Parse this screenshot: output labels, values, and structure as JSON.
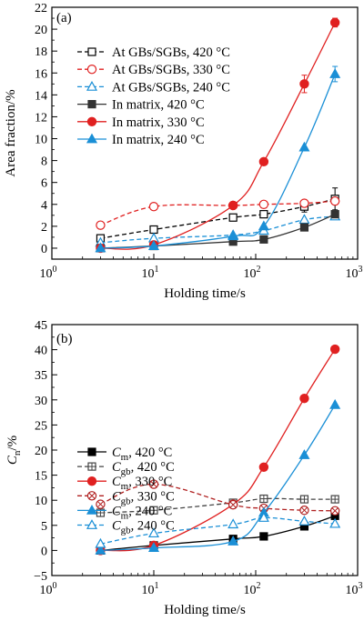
{
  "chart_data": [
    {
      "type": "scatter",
      "panel_label": "(a)",
      "xlabel": "Holding time/s",
      "ylabel": "Area fraction/%",
      "xscale": "log",
      "xlim": [
        1,
        1000
      ],
      "ylim": [
        -1,
        22
      ],
      "xticks": [
        {
          "value": 1,
          "base": "10",
          "exp": "0"
        },
        {
          "value": 10,
          "base": "10",
          "exp": "1"
        },
        {
          "value": 100,
          "base": "10",
          "exp": "2"
        },
        {
          "value": 1000,
          "base": "10",
          "exp": "3"
        }
      ],
      "yticks": [
        0,
        2,
        4,
        6,
        8,
        10,
        12,
        14,
        16,
        18,
        20,
        22
      ],
      "legend_position": "upper-left",
      "series": [
        {
          "name": "At GBs/SGBs, 420 °C",
          "color": "#000000",
          "marker": "square",
          "filled": false,
          "dashed": true,
          "points": [
            [
              3,
              0.9
            ],
            [
              10,
              1.7
            ],
            [
              60,
              2.8
            ],
            [
              120,
              3.1
            ],
            [
              300,
              3.8
            ],
            [
              600,
              4.5
            ]
          ],
          "err": [
            0.1,
            0.1,
            0.2,
            0.2,
            0.5,
            1.0
          ]
        },
        {
          "name": "At GBs/SGBs, 330 °C",
          "color": "#e02020",
          "marker": "circle",
          "filled": false,
          "dashed": true,
          "points": [
            [
              3,
              2.1
            ],
            [
              10,
              3.8
            ],
            [
              60,
              3.9
            ],
            [
              120,
              4.0
            ],
            [
              300,
              4.1
            ],
            [
              600,
              4.3
            ]
          ],
          "err": [
            0,
            0,
            0,
            0,
            0,
            0
          ]
        },
        {
          "name": "At GBs/SGBs, 240 °C",
          "color": "#1a8fd6",
          "marker": "triangle",
          "filled": false,
          "dashed": true,
          "points": [
            [
              3,
              0.5
            ],
            [
              10,
              0.9
            ],
            [
              60,
              1.2
            ],
            [
              120,
              1.6
            ],
            [
              300,
              2.6
            ],
            [
              600,
              2.9
            ]
          ],
          "err": [
            0,
            0,
            0,
            0,
            0,
            0
          ]
        },
        {
          "name": "In matrix, 420 °C",
          "color": "#333333",
          "marker": "square",
          "filled": true,
          "dashed": false,
          "points": [
            [
              3,
              0.0
            ],
            [
              10,
              0.2
            ],
            [
              60,
              0.6
            ],
            [
              120,
              0.8
            ],
            [
              300,
              1.9
            ],
            [
              600,
              3.1
            ]
          ],
          "err": [
            0,
            0,
            0,
            0,
            0,
            0
          ]
        },
        {
          "name": "In matrix, 330 °C",
          "color": "#e02020",
          "marker": "circle",
          "filled": true,
          "dashed": false,
          "points": [
            [
              3,
              0.0
            ],
            [
              10,
              0.3
            ],
            [
              60,
              3.9
            ],
            [
              120,
              7.9
            ],
            [
              300,
              15.0
            ],
            [
              600,
              20.6
            ]
          ],
          "err": [
            0,
            0,
            0,
            0.3,
            0.8,
            0.4
          ]
        },
        {
          "name": "In matrix, 240 °C",
          "color": "#1a8fd6",
          "marker": "triangle",
          "filled": true,
          "dashed": false,
          "points": [
            [
              3,
              0.0
            ],
            [
              10,
              0.2
            ],
            [
              60,
              1.1
            ],
            [
              120,
              2.0
            ],
            [
              300,
              9.2
            ],
            [
              600,
              15.9
            ]
          ],
          "err": [
            0,
            0,
            0,
            0,
            0,
            0.7
          ]
        }
      ]
    },
    {
      "type": "scatter",
      "panel_label": "(b)",
      "xlabel": "Holding time/s",
      "ylabel": {
        "main": "C",
        "sub": "n",
        "unit": "/%"
      },
      "xscale": "log",
      "xlim": [
        1,
        1000
      ],
      "ylim": [
        -5,
        45
      ],
      "xticks": [
        {
          "value": 1,
          "base": "10",
          "exp": "0"
        },
        {
          "value": 10,
          "base": "10",
          "exp": "1"
        },
        {
          "value": 100,
          "base": "10",
          "exp": "2"
        },
        {
          "value": 1000,
          "base": "10",
          "exp": "3"
        }
      ],
      "yticks": [
        -5,
        0,
        5,
        10,
        15,
        20,
        25,
        30,
        35,
        40,
        45
      ],
      "legend_position": "center-left",
      "series": [
        {
          "name": {
            "main": "C",
            "sub": "m",
            "rest": ", 420 °C"
          },
          "color": "#000000",
          "marker": "square",
          "filled": true,
          "dashed": false,
          "points": [
            [
              3,
              0.0
            ],
            [
              10,
              1.0
            ],
            [
              60,
              2.3
            ],
            [
              120,
              2.8
            ],
            [
              300,
              4.8
            ],
            [
              600,
              6.9
            ]
          ]
        },
        {
          "name": {
            "main": "C",
            "sub": "gb",
            "rest": ", 420 °C"
          },
          "color": "#444444",
          "marker": "square-cross",
          "filled": false,
          "dashed": true,
          "points": [
            [
              3,
              7.5
            ],
            [
              10,
              8.0
            ],
            [
              60,
              9.5
            ],
            [
              120,
              10.3
            ],
            [
              300,
              10.2
            ],
            [
              600,
              10.2
            ]
          ]
        },
        {
          "name": {
            "main": "C",
            "sub": "m",
            "rest": ", 330 °C"
          },
          "color": "#e02020",
          "marker": "circle",
          "filled": true,
          "dashed": false,
          "points": [
            [
              3,
              0.0
            ],
            [
              10,
              1.0
            ],
            [
              60,
              9.2
            ],
            [
              120,
              16.6
            ],
            [
              300,
              30.3
            ],
            [
              600,
              40.1
            ]
          ]
        },
        {
          "name": {
            "main": "C",
            "sub": "gb",
            "rest": ", 330 °C"
          },
          "color": "#b02020",
          "marker": "circle-x",
          "filled": false,
          "dashed": true,
          "points": [
            [
              3,
              9.2
            ],
            [
              10,
              13.2
            ],
            [
              60,
              9.1
            ],
            [
              120,
              8.4
            ],
            [
              300,
              8.0
            ],
            [
              600,
              7.9
            ]
          ]
        },
        {
          "name": {
            "main": "C",
            "sub": "m",
            "rest": ", 240 °C"
          },
          "color": "#1a8fd6",
          "marker": "triangle",
          "filled": true,
          "dashed": false,
          "points": [
            [
              3,
              0.0
            ],
            [
              10,
              0.5
            ],
            [
              60,
              1.8
            ],
            [
              120,
              7.5
            ],
            [
              300,
              19.0
            ],
            [
              600,
              29.0
            ]
          ]
        },
        {
          "name": {
            "main": "C",
            "sub": "gb",
            "rest": ", 240 °C"
          },
          "color": "#1a8fd6",
          "marker": "triangle",
          "filled": false,
          "dashed": true,
          "points": [
            [
              3,
              1.3
            ],
            [
              10,
              3.4
            ],
            [
              60,
              5.2
            ],
            [
              120,
              6.5
            ],
            [
              300,
              5.8
            ],
            [
              600,
              5.3
            ]
          ]
        }
      ]
    }
  ]
}
